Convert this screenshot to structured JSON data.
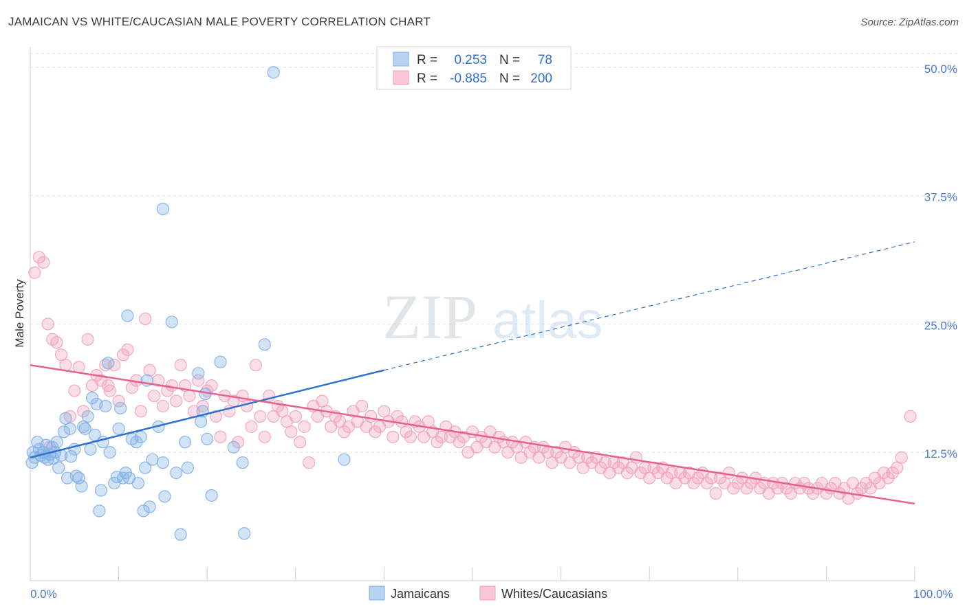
{
  "title": "JAMAICAN VS WHITE/CAUCASIAN MALE POVERTY CORRELATION CHART",
  "source": "Source: ZipAtlas.com",
  "watermark": {
    "zip": "ZIP",
    "atlas": "atlas"
  },
  "colors": {
    "blue": "#7eaee6",
    "blue_line": "#2f6fce",
    "pink": "#f0a0bb",
    "pink_line": "#e8608e",
    "axis_text": "#4a7cc9"
  },
  "legend": {
    "r_label": "R =",
    "n_label": "N =",
    "rows": [
      {
        "series": "Jamaicans",
        "r": "0.253",
        "n": "78"
      },
      {
        "series": "Whites/Caucasians",
        "r": "-0.885",
        "n": "200"
      }
    ]
  },
  "chart_data": {
    "type": "scatter",
    "title": "JAMAICAN VS WHITE/CAUCASIAN MALE POVERTY CORRELATION CHART",
    "xlabel": "",
    "ylabel": "Male Poverty",
    "xlim": [
      0,
      100
    ],
    "ylim": [
      0,
      52
    ],
    "x_tick_labels": [
      "0.0%",
      "100.0%"
    ],
    "y_ticks": [
      12.5,
      25.0,
      37.5,
      50.0
    ],
    "y_tick_labels": [
      "12.5%",
      "25.0%",
      "37.5%",
      "50.0%"
    ],
    "grid": "horizontal dashed",
    "legend_position": "top-center",
    "series": [
      {
        "name": "Jamaicans",
        "color": "#7eaee6",
        "trend": {
          "x": [
            0,
            40
          ],
          "y": [
            12.0,
            20.5
          ],
          "dashed_extension_to": [
            100,
            33.0
          ]
        },
        "points": [
          [
            0.3,
            12.5
          ],
          [
            0.5,
            12.0
          ],
          [
            0.8,
            13.5
          ],
          [
            1.0,
            12.8
          ],
          [
            1.2,
            12.2
          ],
          [
            1.5,
            12.5
          ],
          [
            1.8,
            13.2
          ],
          [
            2.0,
            11.8
          ],
          [
            2.2,
            12.3
          ],
          [
            2.5,
            13.0
          ],
          [
            2.8,
            12.5
          ],
          [
            3.0,
            13.5
          ],
          [
            3.2,
            11.0
          ],
          [
            3.5,
            12.2
          ],
          [
            3.8,
            14.5
          ],
          [
            4.0,
            15.8
          ],
          [
            4.2,
            10.0
          ],
          [
            4.5,
            14.8
          ],
          [
            5.0,
            12.8
          ],
          [
            5.2,
            10.2
          ],
          [
            5.5,
            10.0
          ],
          [
            5.8,
            9.2
          ],
          [
            6.0,
            15.0
          ],
          [
            6.2,
            14.8
          ],
          [
            6.5,
            16.0
          ],
          [
            6.8,
            12.8
          ],
          [
            7.0,
            17.8
          ],
          [
            7.3,
            14.2
          ],
          [
            7.5,
            17.2
          ],
          [
            7.8,
            6.8
          ],
          [
            8.0,
            8.8
          ],
          [
            8.2,
            13.5
          ],
          [
            8.5,
            17.0
          ],
          [
            8.8,
            21.2
          ],
          [
            9.0,
            12.5
          ],
          [
            9.5,
            9.5
          ],
          [
            10.0,
            14.8
          ],
          [
            10.2,
            16.8
          ],
          [
            10.5,
            10.0
          ],
          [
            10.8,
            10.5
          ],
          [
            11.0,
            25.8
          ],
          [
            11.2,
            10.0
          ],
          [
            11.5,
            13.8
          ],
          [
            12.0,
            13.5
          ],
          [
            12.2,
            9.5
          ],
          [
            12.5,
            14.0
          ],
          [
            12.8,
            6.8
          ],
          [
            13.0,
            11.0
          ],
          [
            13.2,
            19.5
          ],
          [
            13.5,
            7.2
          ],
          [
            13.8,
            11.8
          ],
          [
            14.5,
            15.0
          ],
          [
            15.0,
            11.5
          ],
          [
            15.2,
            8.2
          ],
          [
            15.0,
            36.2
          ],
          [
            16.0,
            25.2
          ],
          [
            16.5,
            10.5
          ],
          [
            17.0,
            4.5
          ],
          [
            17.5,
            13.5
          ],
          [
            17.8,
            11.0
          ],
          [
            19.0,
            20.2
          ],
          [
            19.3,
            15.5
          ],
          [
            19.5,
            16.5
          ],
          [
            19.8,
            18.2
          ],
          [
            20.0,
            13.8
          ],
          [
            20.5,
            8.3
          ],
          [
            21.5,
            21.3
          ],
          [
            23.0,
            13.0
          ],
          [
            24.0,
            11.5
          ],
          [
            24.2,
            4.6
          ],
          [
            26.5,
            23.0
          ],
          [
            27.5,
            49.5
          ],
          [
            35.5,
            11.8
          ],
          [
            0.2,
            11.5
          ],
          [
            1.6,
            12.0
          ],
          [
            2.6,
            11.9
          ],
          [
            4.6,
            12.1
          ],
          [
            9.8,
            10.1
          ]
        ]
      },
      {
        "name": "Whites/Caucasians",
        "color": "#f0a0bb",
        "trend": {
          "x": [
            0,
            100
          ],
          "y": [
            21.0,
            7.5
          ]
        },
        "points": [
          [
            0.5,
            30.0
          ],
          [
            1.0,
            31.5
          ],
          [
            1.5,
            31.0
          ],
          [
            2.0,
            25.0
          ],
          [
            2.5,
            23.5
          ],
          [
            3.0,
            23.2
          ],
          [
            3.5,
            22.0
          ],
          [
            4.0,
            21.0
          ],
          [
            4.5,
            16.0
          ],
          [
            5.0,
            18.5
          ],
          [
            5.5,
            20.8
          ],
          [
            6.0,
            16.5
          ],
          [
            6.5,
            23.5
          ],
          [
            7.0,
            19.0
          ],
          [
            7.5,
            20.0
          ],
          [
            8.0,
            19.5
          ],
          [
            8.5,
            21.0
          ],
          [
            9.0,
            18.5
          ],
          [
            9.5,
            21.0
          ],
          [
            10.0,
            17.5
          ],
          [
            10.5,
            22.0
          ],
          [
            11.0,
            22.5
          ],
          [
            11.5,
            18.8
          ],
          [
            12.0,
            19.5
          ],
          [
            12.5,
            16.5
          ],
          [
            13.0,
            25.5
          ],
          [
            13.5,
            20.5
          ],
          [
            14.0,
            18.0
          ],
          [
            14.5,
            19.5
          ],
          [
            15.0,
            17.0
          ],
          [
            15.5,
            18.5
          ],
          [
            16.0,
            19.0
          ],
          [
            16.5,
            17.5
          ],
          [
            17.0,
            21.0
          ],
          [
            17.5,
            19.0
          ],
          [
            18.0,
            18.0
          ],
          [
            18.5,
            16.5
          ],
          [
            19.0,
            19.5
          ],
          [
            19.5,
            17.0
          ],
          [
            20.0,
            18.5
          ],
          [
            20.5,
            19.0
          ],
          [
            21.0,
            16.0
          ],
          [
            21.5,
            14.0
          ],
          [
            22.0,
            18.0
          ],
          [
            22.5,
            16.5
          ],
          [
            23.0,
            17.5
          ],
          [
            23.5,
            13.5
          ],
          [
            24.0,
            18.0
          ],
          [
            24.5,
            17.0
          ],
          [
            25.0,
            15.0
          ],
          [
            25.5,
            21.0
          ],
          [
            26.0,
            16.0
          ],
          [
            26.5,
            14.0
          ],
          [
            27.0,
            18.0
          ],
          [
            27.5,
            16.0
          ],
          [
            28.0,
            17.0
          ],
          [
            28.5,
            16.5
          ],
          [
            29.0,
            15.5
          ],
          [
            29.5,
            14.5
          ],
          [
            30.0,
            16.0
          ],
          [
            30.5,
            13.5
          ],
          [
            31.0,
            15.0
          ],
          [
            31.5,
            11.5
          ],
          [
            32.0,
            17.0
          ],
          [
            32.5,
            16.0
          ],
          [
            33.0,
            17.5
          ],
          [
            33.5,
            16.5
          ],
          [
            34.0,
            15.0
          ],
          [
            34.5,
            16.0
          ],
          [
            35.0,
            15.5
          ],
          [
            35.5,
            14.5
          ],
          [
            36.0,
            15.0
          ],
          [
            36.5,
            16.5
          ],
          [
            37.0,
            15.5
          ],
          [
            37.5,
            17.0
          ],
          [
            38.0,
            15.0
          ],
          [
            38.5,
            16.0
          ],
          [
            39.0,
            14.5
          ],
          [
            39.5,
            15.0
          ],
          [
            40.0,
            16.5
          ],
          [
            40.5,
            15.5
          ],
          [
            41.0,
            14.0
          ],
          [
            41.5,
            16.0
          ],
          [
            42.0,
            15.5
          ],
          [
            42.5,
            14.5
          ],
          [
            43.0,
            14.0
          ],
          [
            43.5,
            15.5
          ],
          [
            44.0,
            15.0
          ],
          [
            44.5,
            14.0
          ],
          [
            45.0,
            15.5
          ],
          [
            45.5,
            14.5
          ],
          [
            46.0,
            13.5
          ],
          [
            46.5,
            14.0
          ],
          [
            47.0,
            15.0
          ],
          [
            47.5,
            14.0
          ],
          [
            48.0,
            14.5
          ],
          [
            48.5,
            13.5
          ],
          [
            49.0,
            14.0
          ],
          [
            49.5,
            12.5
          ],
          [
            50.0,
            14.5
          ],
          [
            50.5,
            13.0
          ],
          [
            51.0,
            14.0
          ],
          [
            51.5,
            13.5
          ],
          [
            52.0,
            14.5
          ],
          [
            52.5,
            13.0
          ],
          [
            53.0,
            14.0
          ],
          [
            53.5,
            13.5
          ],
          [
            54.0,
            12.5
          ],
          [
            54.5,
            13.5
          ],
          [
            55.0,
            13.0
          ],
          [
            55.5,
            12.0
          ],
          [
            56.0,
            13.5
          ],
          [
            56.5,
            12.5
          ],
          [
            57.0,
            13.0
          ],
          [
            57.5,
            12.0
          ],
          [
            58.0,
            13.0
          ],
          [
            58.5,
            12.5
          ],
          [
            59.0,
            11.5
          ],
          [
            59.5,
            12.5
          ],
          [
            60.0,
            12.0
          ],
          [
            60.5,
            13.0
          ],
          [
            61.0,
            11.5
          ],
          [
            61.5,
            12.5
          ],
          [
            62.0,
            12.0
          ],
          [
            62.5,
            11.0
          ],
          [
            63.0,
            12.0
          ],
          [
            63.5,
            11.5
          ],
          [
            64.0,
            12.0
          ],
          [
            64.5,
            11.0
          ],
          [
            65.0,
            11.5
          ],
          [
            65.5,
            10.5
          ],
          [
            66.0,
            11.5
          ],
          [
            66.5,
            11.0
          ],
          [
            67.0,
            11.5
          ],
          [
            67.5,
            10.5
          ],
          [
            68.0,
            11.0
          ],
          [
            68.5,
            12.0
          ],
          [
            69.0,
            10.5
          ],
          [
            69.5,
            11.0
          ],
          [
            70.0,
            10.0
          ],
          [
            70.5,
            11.0
          ],
          [
            71.0,
            10.5
          ],
          [
            71.5,
            11.0
          ],
          [
            72.0,
            10.0
          ],
          [
            72.5,
            10.5
          ],
          [
            73.0,
            9.5
          ],
          [
            73.5,
            10.5
          ],
          [
            74.0,
            10.0
          ],
          [
            74.5,
            10.5
          ],
          [
            75.0,
            9.5
          ],
          [
            75.5,
            10.0
          ],
          [
            76.0,
            10.5
          ],
          [
            76.5,
            9.5
          ],
          [
            77.0,
            10.0
          ],
          [
            77.5,
            8.5
          ],
          [
            78.0,
            10.0
          ],
          [
            78.5,
            9.5
          ],
          [
            79.0,
            10.5
          ],
          [
            79.5,
            9.0
          ],
          [
            80.0,
            9.5
          ],
          [
            80.5,
            10.0
          ],
          [
            81.0,
            9.0
          ],
          [
            81.5,
            9.5
          ],
          [
            82.0,
            10.0
          ],
          [
            82.5,
            9.0
          ],
          [
            83.0,
            9.5
          ],
          [
            83.5,
            8.5
          ],
          [
            84.0,
            9.5
          ],
          [
            84.5,
            9.0
          ],
          [
            85.0,
            9.5
          ],
          [
            85.5,
            9.0
          ],
          [
            86.0,
            8.5
          ],
          [
            86.5,
            9.5
          ],
          [
            87.0,
            9.0
          ],
          [
            87.5,
            9.5
          ],
          [
            88.0,
            9.0
          ],
          [
            88.5,
            8.5
          ],
          [
            89.0,
            9.0
          ],
          [
            89.5,
            9.5
          ],
          [
            90.0,
            8.5
          ],
          [
            90.5,
            9.0
          ],
          [
            91.0,
            9.5
          ],
          [
            91.5,
            8.5
          ],
          [
            92.0,
            9.0
          ],
          [
            92.5,
            8.0
          ],
          [
            93.0,
            9.5
          ],
          [
            93.5,
            8.5
          ],
          [
            94.0,
            9.0
          ],
          [
            94.5,
            9.5
          ],
          [
            95.0,
            9.0
          ],
          [
            95.5,
            10.0
          ],
          [
            96.0,
            9.5
          ],
          [
            96.5,
            10.5
          ],
          [
            97.0,
            10.0
          ],
          [
            97.5,
            10.5
          ],
          [
            98.0,
            11.0
          ],
          [
            98.5,
            12.0
          ],
          [
            99.5,
            16.0
          ],
          [
            2.2,
            13.0
          ],
          [
            8.8,
            19.0
          ]
        ]
      }
    ]
  },
  "bottom_legend": [
    "Jamaicans",
    "Whites/Caucasians"
  ]
}
